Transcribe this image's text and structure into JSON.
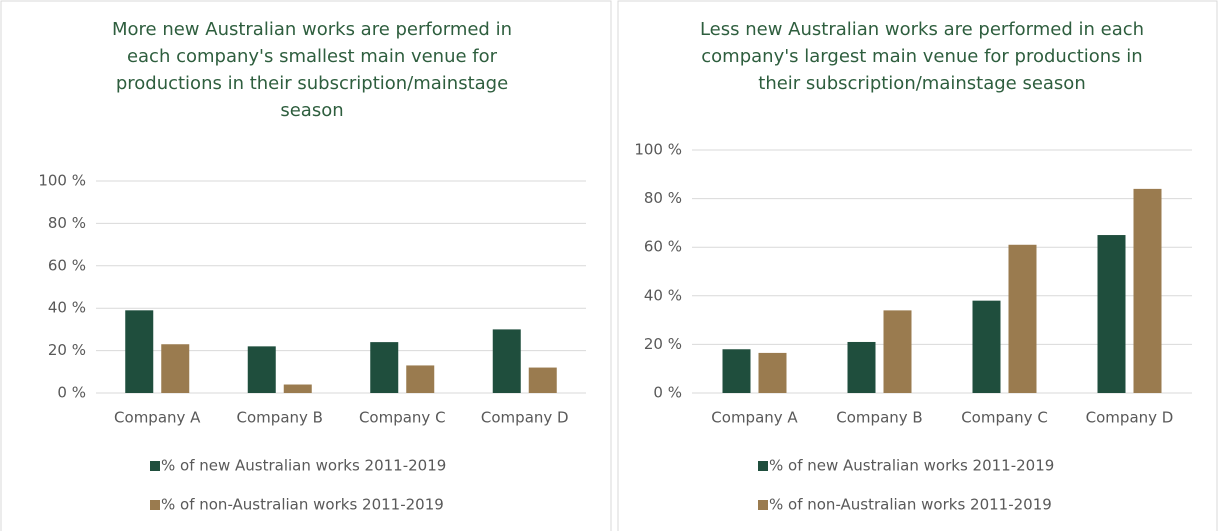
{
  "chart_data": [
    {
      "type": "bar",
      "title": "More new Australian works are performed in each company's smallest main venue for productions in their subscription/mainstage season",
      "categories": [
        "Company A",
        "Company B",
        "Company C",
        "Company D"
      ],
      "series": [
        {
          "name": "%  of new Australian works 2011-2019",
          "color": "#1f4e3d",
          "values": [
            39,
            22,
            24,
            30
          ]
        },
        {
          "name": "%  of non-Australian works 2011-2019",
          "color": "#9a7b4f",
          "values": [
            23,
            4,
            13,
            12
          ]
        }
      ],
      "ylim": [
        0,
        100
      ],
      "yticks": [
        {
          "value": 0,
          "label": "0 %"
        },
        {
          "value": 20,
          "label": "20 %"
        },
        {
          "value": 40,
          "label": "40 %"
        },
        {
          "value": 60,
          "label": "60 %"
        },
        {
          "value": 80,
          "label": "80 %"
        },
        {
          "value": 100,
          "label": "100 %"
        }
      ],
      "grid": true
    },
    {
      "type": "bar",
      "title": "Less new Australian works are performed in each company's largest main venue for productions in their subscription/mainstage season",
      "categories": [
        "Company A",
        "Company B",
        "Company C",
        "Company D"
      ],
      "series": [
        {
          "name": "%  of new Australian works 2011-2019",
          "color": "#1f4e3d",
          "values": [
            18,
            21,
            38,
            65
          ]
        },
        {
          "name": "%  of non-Australian works 2011-2019",
          "color": "#9a7b4f",
          "values": [
            16.5,
            34,
            61,
            84
          ]
        }
      ],
      "ylim": [
        0,
        100
      ],
      "yticks": [
        {
          "value": 0,
          "label": "0 %"
        },
        {
          "value": 20,
          "label": "20 %"
        },
        {
          "value": 40,
          "label": "40 %"
        },
        {
          "value": 60,
          "label": "60 %"
        },
        {
          "value": 80,
          "label": "80 %"
        },
        {
          "value": 100,
          "label": "100 %"
        }
      ],
      "grid": true
    }
  ]
}
